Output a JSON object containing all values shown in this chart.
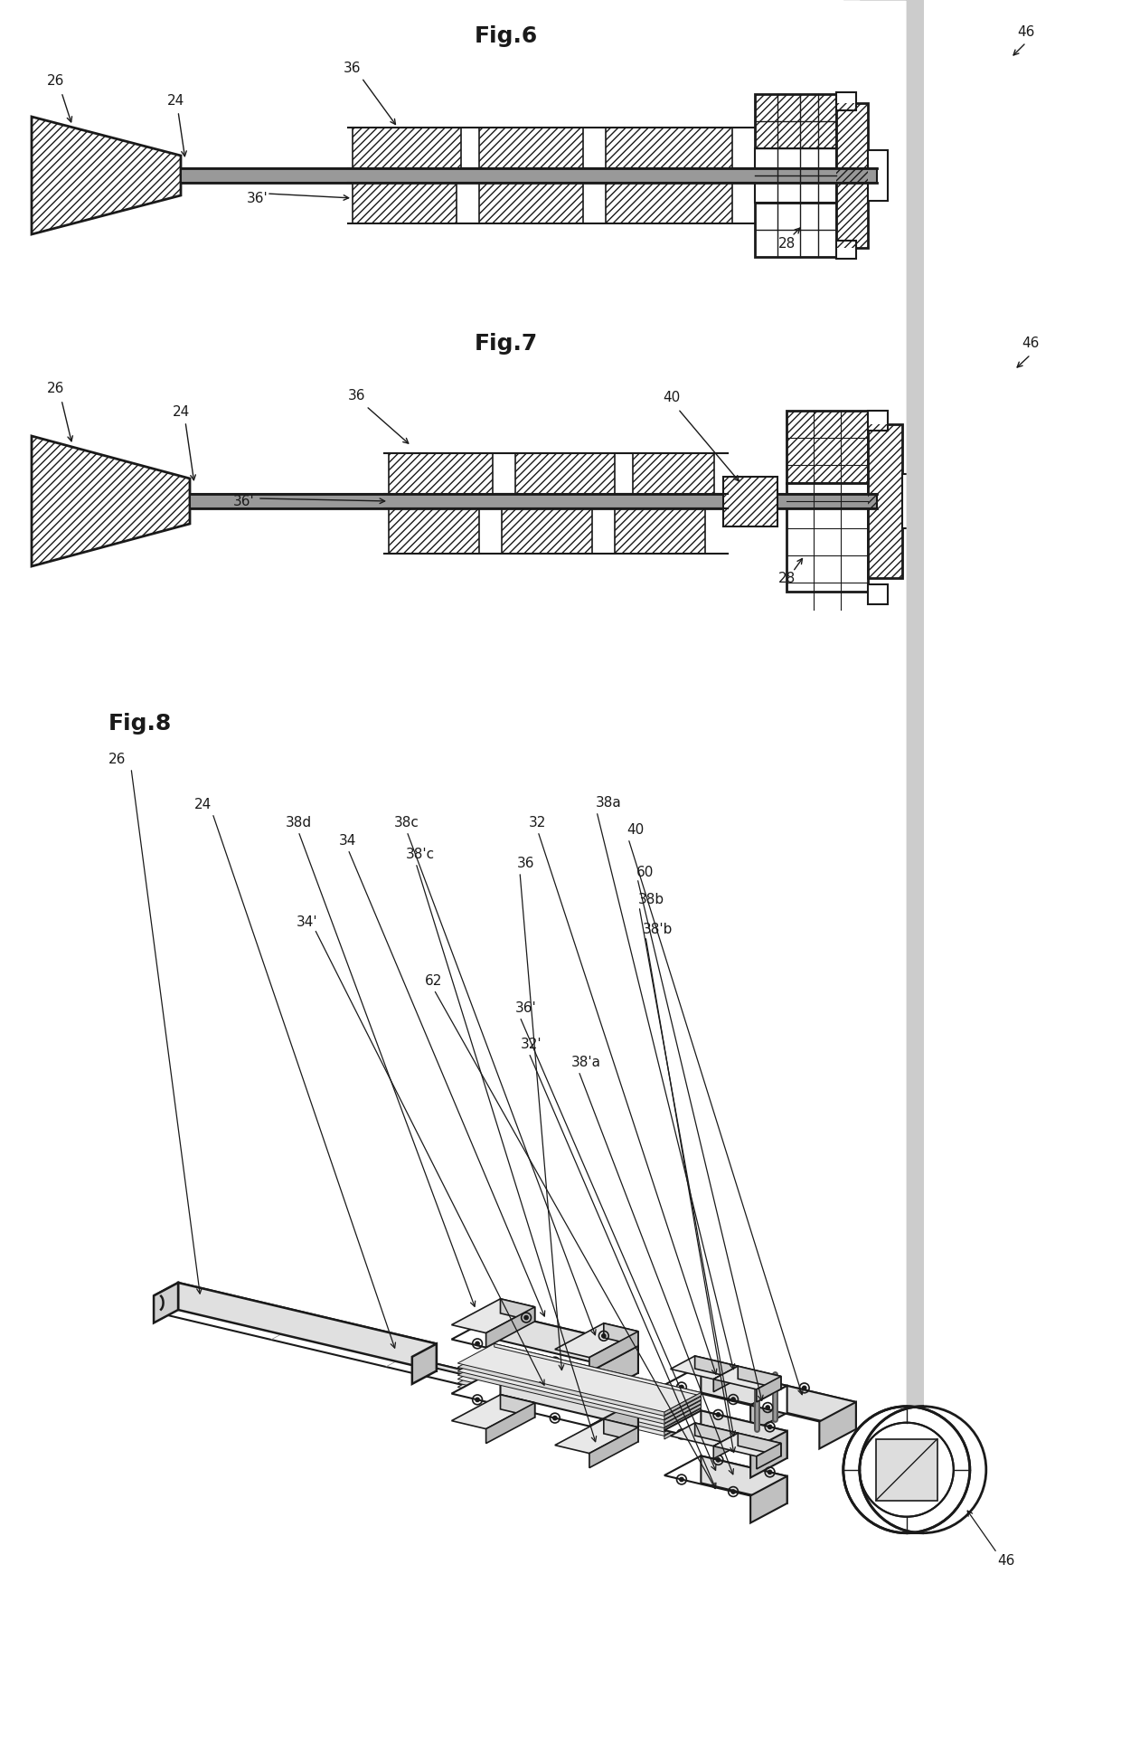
{
  "bg_color": "#ffffff",
  "line_color": "#1a1a1a",
  "fig_width": 12.4,
  "fig_height": 19.4,
  "fig6_title": "Fig.6",
  "fig7_title": "Fig.7",
  "fig8_title": "Fig.8"
}
